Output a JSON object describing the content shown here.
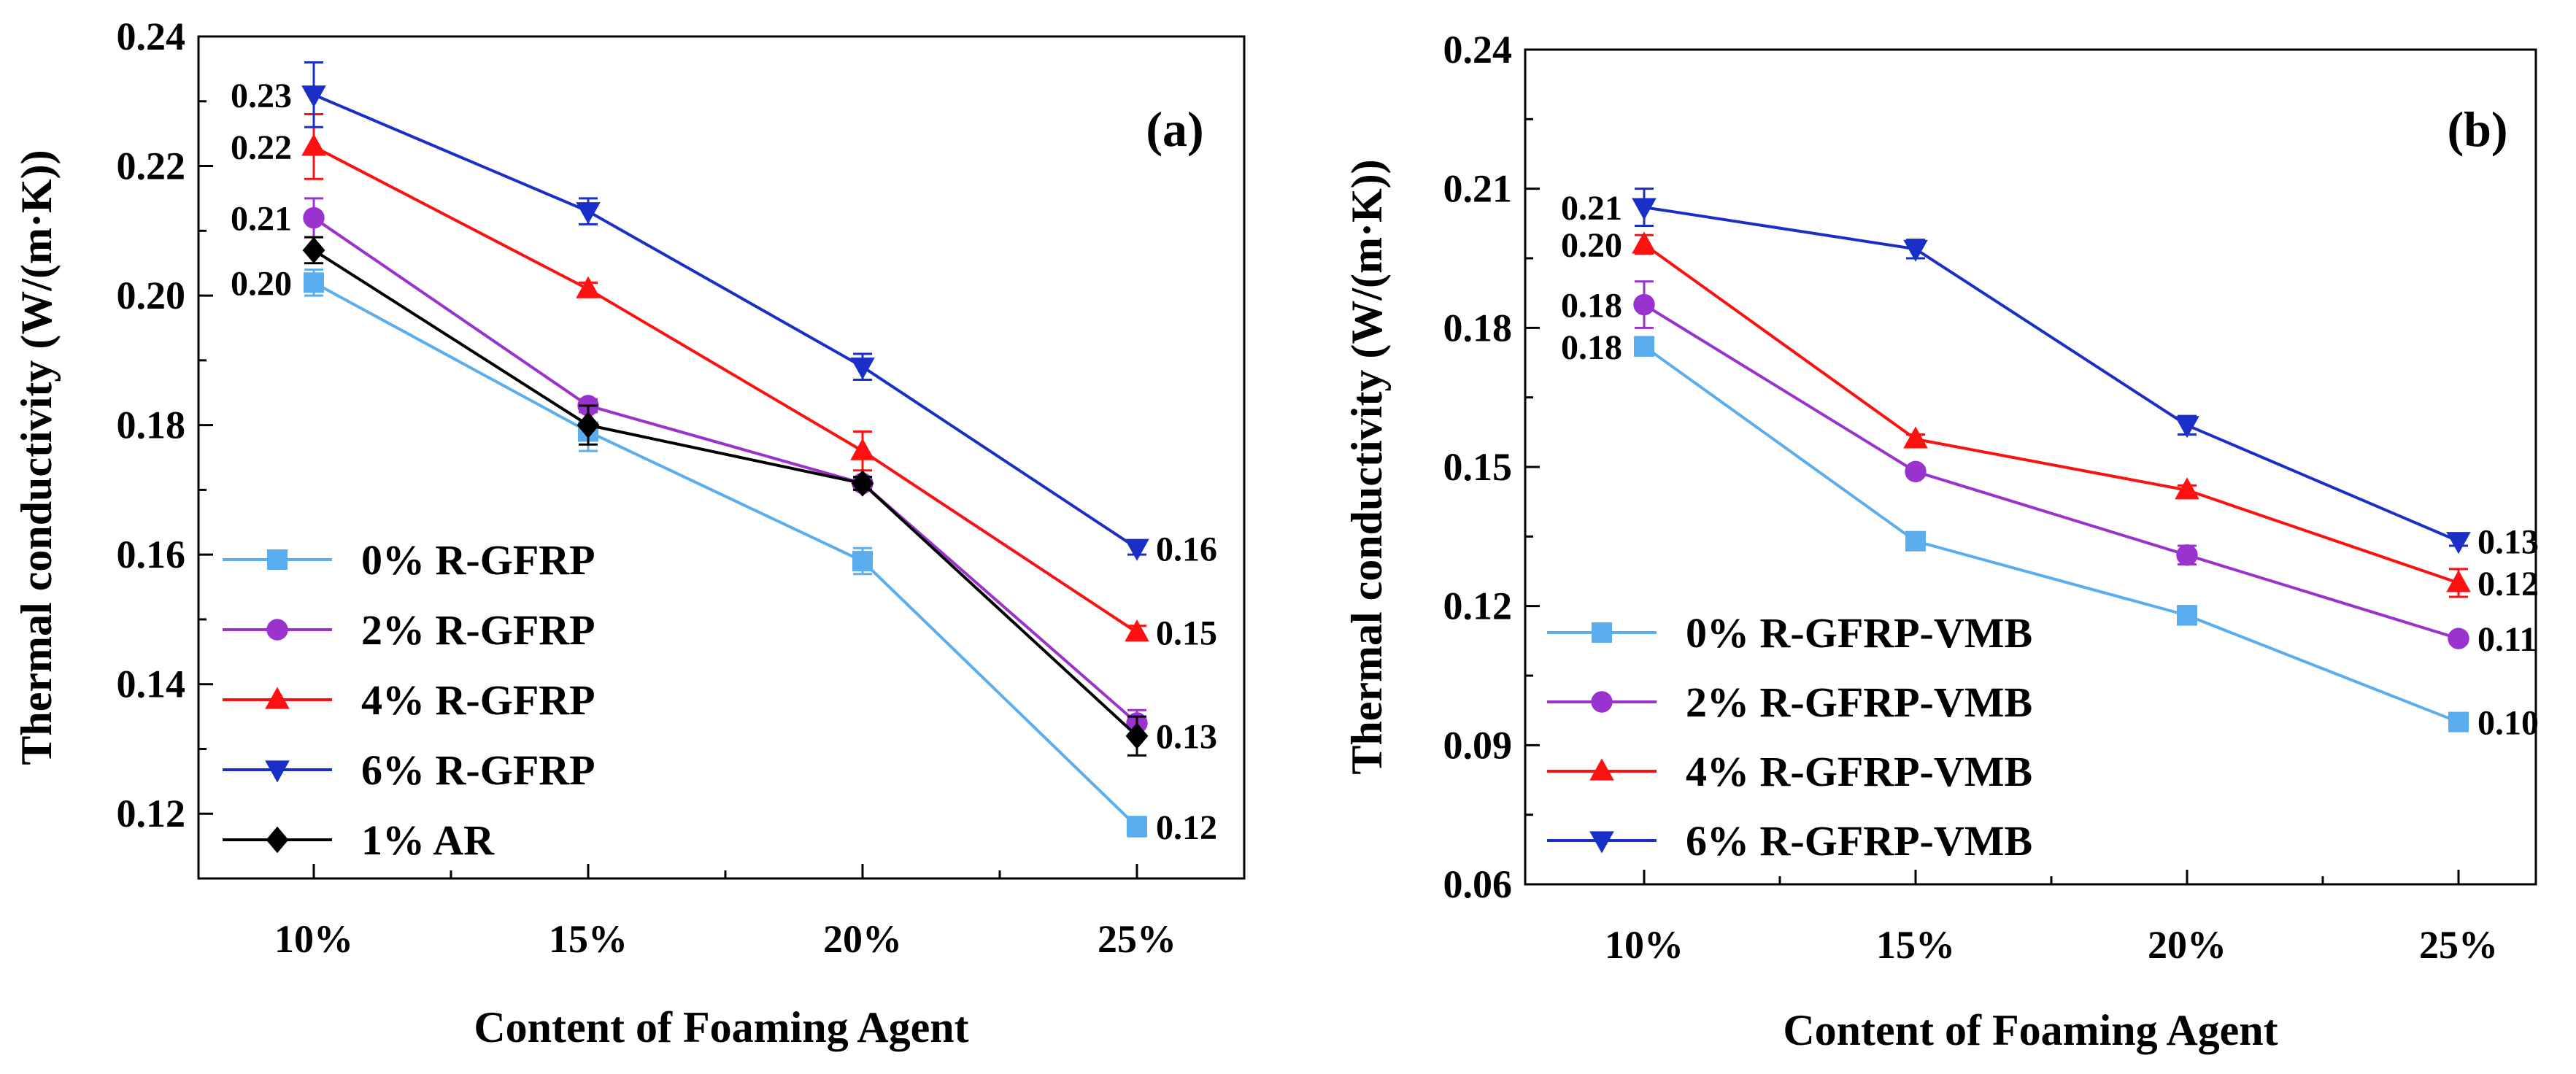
{
  "chart_data": [
    {
      "type": "line",
      "panel_label": "(a)",
      "categories": [
        "10%",
        "15%",
        "20%",
        "25%"
      ],
      "xlabel": "Content of Foaming Agent",
      "ylabel": "Thermal conductivity (W/(m·K))",
      "ylim": [
        0.11,
        0.24
      ],
      "yticks": [
        0.12,
        0.14,
        0.16,
        0.18,
        0.2,
        0.22,
        0.24
      ],
      "ytick_labels": [
        "0.12",
        "0.14",
        "0.16",
        "0.18",
        "0.20",
        "0.22",
        "0.24"
      ],
      "legend_position": "bottom-left",
      "series": [
        {
          "name": "0% R-GFRP",
          "color": "#5aaef0",
          "marker": "square",
          "values": [
            0.202,
            0.179,
            0.159,
            0.118
          ],
          "errors": [
            0.002,
            0.003,
            0.002,
            0.0015
          ]
        },
        {
          "name": "2% R-GFRP",
          "color": "#9a32cd",
          "marker": "circle",
          "values": [
            0.212,
            0.183,
            0.171,
            0.134
          ],
          "errors": [
            0.003,
            0.001,
            0.001,
            0.002
          ]
        },
        {
          "name": "4% R-GFRP",
          "color": "#ff1010",
          "marker": "triangle-up",
          "values": [
            0.223,
            0.201,
            0.176,
            0.148
          ],
          "errors": [
            0.005,
            0.001,
            0.003,
            0.001
          ]
        },
        {
          "name": "6% R-GFRP",
          "color": "#1a2fc8",
          "marker": "triangle-down",
          "values": [
            0.231,
            0.213,
            0.189,
            0.161
          ],
          "errors": [
            0.005,
            0.002,
            0.002,
            0.001
          ]
        },
        {
          "name": "1% AR",
          "color": "#000000",
          "marker": "diamond",
          "values": [
            0.207,
            0.18,
            0.171,
            0.132
          ],
          "errors": [
            0.002,
            0.003,
            0.001,
            0.003
          ]
        }
      ],
      "annotations": [
        {
          "text": "0.23",
          "category": "10%",
          "value": 0.231,
          "side": "left"
        },
        {
          "text": "0.22",
          "category": "10%",
          "value": 0.223,
          "side": "left"
        },
        {
          "text": "0.21",
          "category": "10%",
          "value": 0.212,
          "side": "left"
        },
        {
          "text": "0.20",
          "category": "10%",
          "value": 0.202,
          "side": "left"
        },
        {
          "text": "0.16",
          "category": "25%",
          "value": 0.161,
          "side": "right"
        },
        {
          "text": "0.15",
          "category": "25%",
          "value": 0.148,
          "side": "right"
        },
        {
          "text": "0.13",
          "category": "25%",
          "value": 0.132,
          "side": "right"
        },
        {
          "text": "0.12",
          "category": "25%",
          "value": 0.118,
          "side": "right"
        }
      ]
    },
    {
      "type": "line",
      "panel_label": "(b)",
      "categories": [
        "10%",
        "15%",
        "20%",
        "25%"
      ],
      "xlabel": "Content of Foaming Agent",
      "ylabel": "Thermal conductivity (W/(m·K))",
      "ylim": [
        0.06,
        0.24
      ],
      "yticks": [
        0.06,
        0.09,
        0.12,
        0.15,
        0.18,
        0.21,
        0.24
      ],
      "ytick_labels": [
        "0.06",
        "0.09",
        "0.12",
        "0.15",
        "0.18",
        "0.21",
        "0.24"
      ],
      "legend_position": "bottom-left",
      "series": [
        {
          "name": "0% R-GFRP-VMB",
          "color": "#5aaef0",
          "marker": "square",
          "values": [
            0.176,
            0.134,
            0.118,
            0.095
          ],
          "errors": [
            0.002,
            0.001,
            0.002,
            0.001
          ]
        },
        {
          "name": "2% R-GFRP-VMB",
          "color": "#9a32cd",
          "marker": "circle",
          "values": [
            0.185,
            0.149,
            0.131,
            0.113
          ],
          "errors": [
            0.005,
            0.001,
            0.002,
            0.001
          ]
        },
        {
          "name": "4% R-GFRP-VMB",
          "color": "#ff1010",
          "marker": "triangle-up",
          "values": [
            0.198,
            0.156,
            0.145,
            0.125
          ],
          "errors": [
            0.002,
            0.001,
            0.001,
            0.003
          ]
        },
        {
          "name": "6% R-GFRP-VMB",
          "color": "#1a2fc8",
          "marker": "triangle-down",
          "values": [
            0.206,
            0.197,
            0.159,
            0.134
          ],
          "errors": [
            0.004,
            0.002,
            0.002,
            0.001
          ]
        }
      ],
      "annotations": [
        {
          "text": "0.21",
          "category": "10%",
          "value": 0.206,
          "side": "left"
        },
        {
          "text": "0.20",
          "category": "10%",
          "value": 0.198,
          "side": "left"
        },
        {
          "text": "0.18",
          "category": "10%",
          "value": 0.185,
          "side": "left"
        },
        {
          "text": "0.18",
          "category": "10%",
          "value": 0.176,
          "side": "left"
        },
        {
          "text": "0.13",
          "category": "25%",
          "value": 0.134,
          "side": "right"
        },
        {
          "text": "0.12",
          "category": "25%",
          "value": 0.125,
          "side": "right"
        },
        {
          "text": "0.11",
          "category": "25%",
          "value": 0.113,
          "side": "right"
        },
        {
          "text": "0.10",
          "category": "25%",
          "value": 0.095,
          "side": "right"
        }
      ]
    }
  ]
}
